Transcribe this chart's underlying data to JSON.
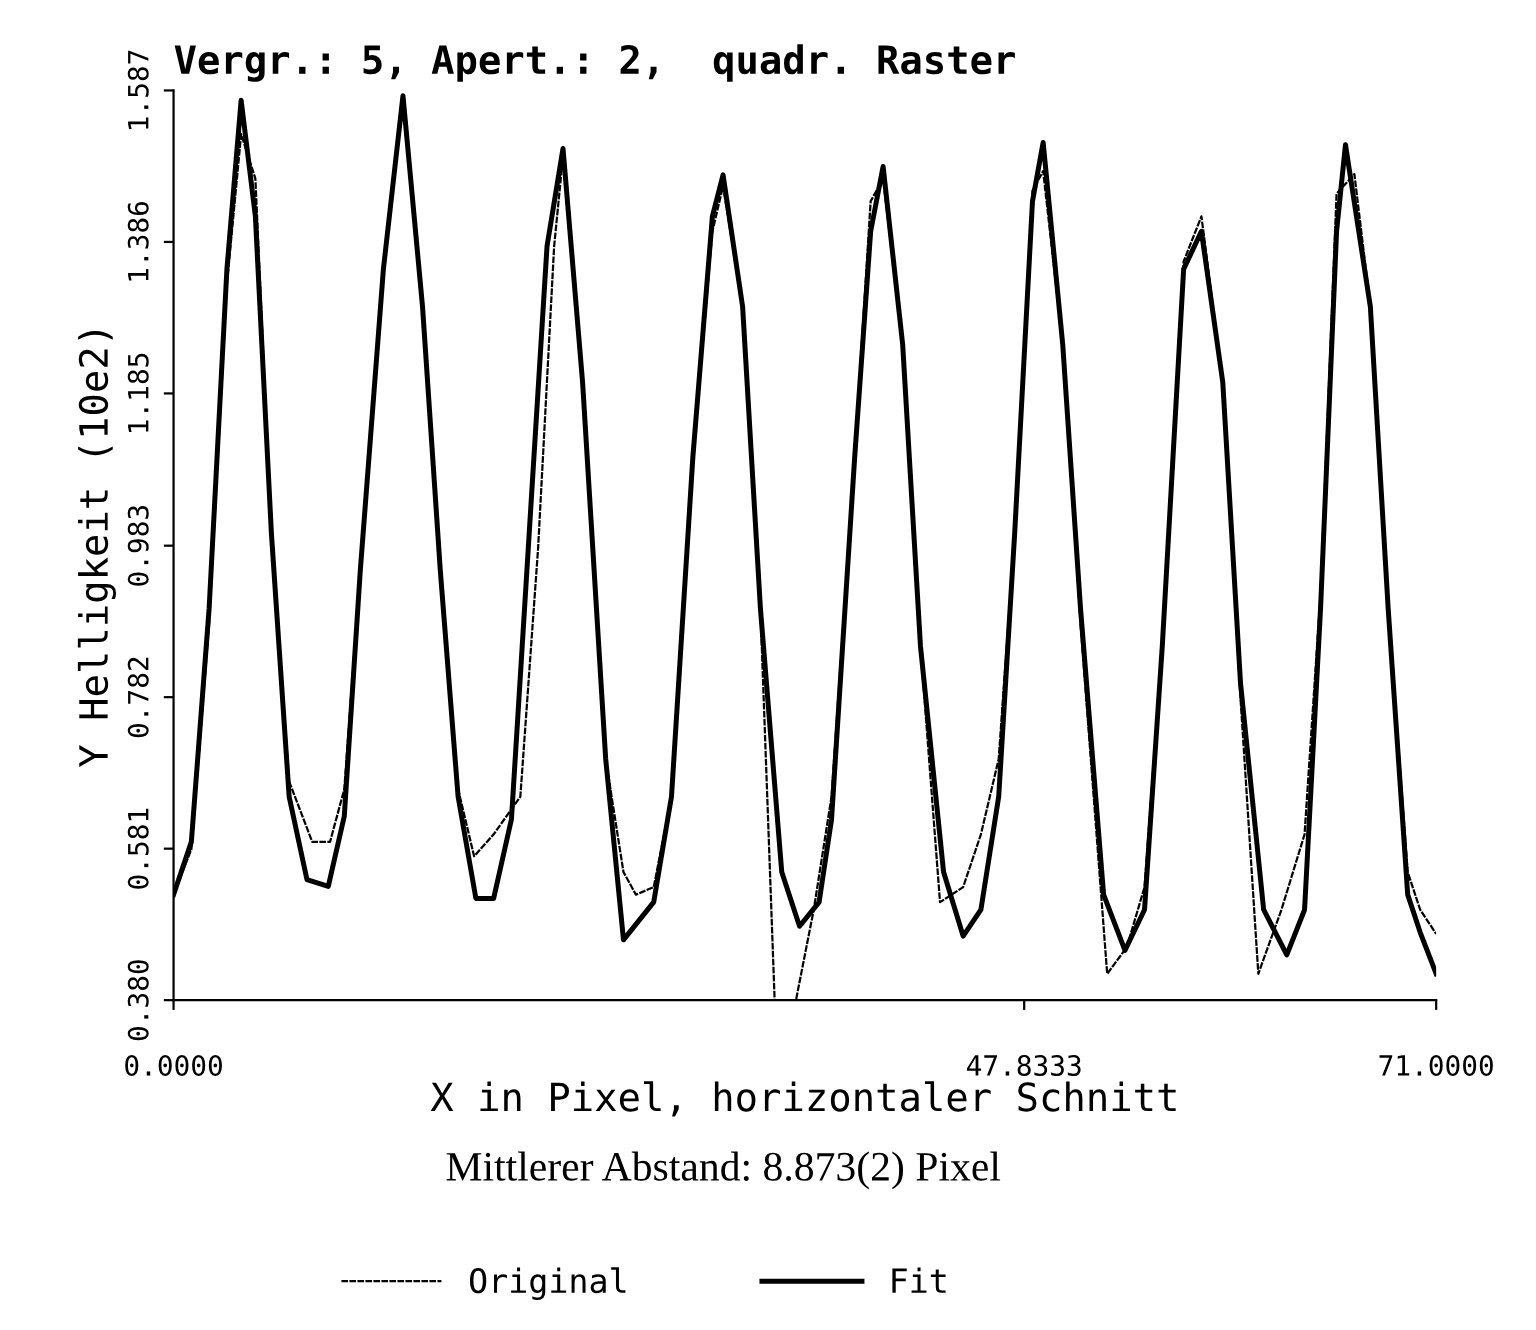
{
  "chart_data": {
    "type": "line",
    "title": "Vergr.: 5, Apert.: 2,  quadr. Raster",
    "xlabel": "X in Pixel, horizontaler Schnitt",
    "ylabel": "Y Helligkeit (10e2)",
    "annotations": [
      "Mittlerer Abstand: 8.873(2) Pixel"
    ],
    "xlim": [
      0,
      71
    ],
    "ylim": [
      0.38,
      1.587
    ],
    "xticks": [
      {
        "value": 0,
        "label": "0.0000"
      },
      {
        "value": 47.8333,
        "label": "47.8333"
      },
      {
        "value": 71,
        "label": "71.0000"
      }
    ],
    "yticks": [
      {
        "value": 0.38,
        "label": "0.380"
      },
      {
        "value": 0.581,
        "label": "0.581"
      },
      {
        "value": 0.782,
        "label": "0.782"
      },
      {
        "value": 0.983,
        "label": "0.983"
      },
      {
        "value": 1.185,
        "label": "1.185"
      },
      {
        "value": 1.386,
        "label": "1.386"
      },
      {
        "value": 1.587,
        "label": "1.587"
      }
    ],
    "grid": false,
    "legend": "bottom",
    "marker": "none",
    "series": [
      {
        "name": "Original",
        "color": "#000000",
        "line_style": "dashed",
        "x": [
          0,
          1,
          2,
          3,
          3.8,
          4.6,
          5.5,
          6.5,
          7.8,
          8.8,
          9.6,
          10.5,
          11.8,
          12.9,
          14,
          15,
          16,
          16.9,
          18,
          19.5,
          20.5,
          21.4,
          21.9,
          23,
          24.3,
          25.3,
          26,
          27,
          28,
          29.2,
          30.3,
          30.9,
          32,
          33,
          33.8,
          35,
          36,
          37,
          38.3,
          39.2,
          39.9,
          41,
          42,
          43.1,
          44.4,
          45.4,
          46.4,
          47.3,
          48.3,
          48.9,
          50,
          51,
          52.5,
          53.6,
          54.6,
          55.6,
          56.8,
          57.8,
          59,
          60,
          61,
          62.3,
          63.6,
          64.5,
          65.4,
          66.4,
          67.3,
          68.3,
          69.4,
          70.1,
          71
        ],
        "values": [
          0.52,
          0.58,
          0.88,
          1.33,
          1.529,
          1.47,
          1.0,
          0.67,
          0.59,
          0.59,
          0.66,
          0.95,
          1.35,
          1.58,
          1.3,
          0.95,
          0.66,
          0.571,
          0.6,
          0.65,
          0.98,
          1.38,
          1.5,
          1.2,
          0.7,
          0.55,
          0.52,
          0.53,
          0.65,
          1.1,
          1.4,
          1.46,
          1.3,
          0.9,
          0.38,
          0.38,
          0.5,
          0.65,
          1.1,
          1.44,
          1.47,
          1.25,
          0.85,
          0.51,
          0.53,
          0.6,
          0.7,
          1.0,
          1.454,
          1.48,
          1.25,
          0.88,
          0.415,
          0.45,
          0.53,
          0.85,
          1.36,
          1.42,
          1.2,
          0.78,
          0.415,
          0.5,
          0.6,
          0.92,
          1.45,
          1.476,
          1.3,
          0.9,
          0.55,
          0.5,
          0.468
        ]
      },
      {
        "name": "Fit",
        "color": "#000000",
        "line_style": "solid",
        "x": [
          0,
          1,
          2,
          3,
          3.8,
          4.6,
          5.5,
          6.5,
          7.5,
          8.7,
          9.6,
          10.5,
          11.8,
          12.9,
          14,
          15,
          16,
          17,
          18,
          19,
          20,
          21,
          21.9,
          23,
          24.3,
          25.3,
          27,
          28,
          29.2,
          30.3,
          30.9,
          32,
          33,
          34.2,
          35.2,
          36.3,
          37,
          38.3,
          39.2,
          39.9,
          41,
          42,
          43.3,
          44.4,
          45.4,
          46.4,
          47.3,
          48.3,
          48.9,
          50,
          51,
          52.3,
          53.5,
          54.6,
          55.6,
          56.8,
          57.8,
          59,
          60,
          61.3,
          62.6,
          63.6,
          64.5,
          65.4,
          65.9,
          67.3,
          68.3,
          69.4,
          70.1,
          71
        ],
        "values": [
          0.52,
          0.59,
          0.9,
          1.35,
          1.574,
          1.42,
          1.0,
          0.65,
          0.54,
          0.531,
          0.624,
          0.95,
          1.35,
          1.58,
          1.3,
          0.95,
          0.65,
          0.515,
          0.515,
          0.62,
          1.0,
          1.38,
          1.51,
          1.2,
          0.7,
          0.46,
          0.51,
          0.65,
          1.1,
          1.42,
          1.475,
          1.3,
          0.9,
          0.55,
          0.478,
          0.51,
          0.62,
          1.1,
          1.4,
          1.486,
          1.25,
          0.85,
          0.55,
          0.465,
          0.5,
          0.65,
          1.0,
          1.44,
          1.518,
          1.25,
          0.9,
          0.52,
          0.446,
          0.5,
          0.85,
          1.35,
          1.4,
          1.2,
          0.8,
          0.5,
          0.44,
          0.5,
          0.9,
          1.4,
          1.515,
          1.3,
          0.9,
          0.52,
          0.47,
          0.415
        ]
      }
    ]
  }
}
